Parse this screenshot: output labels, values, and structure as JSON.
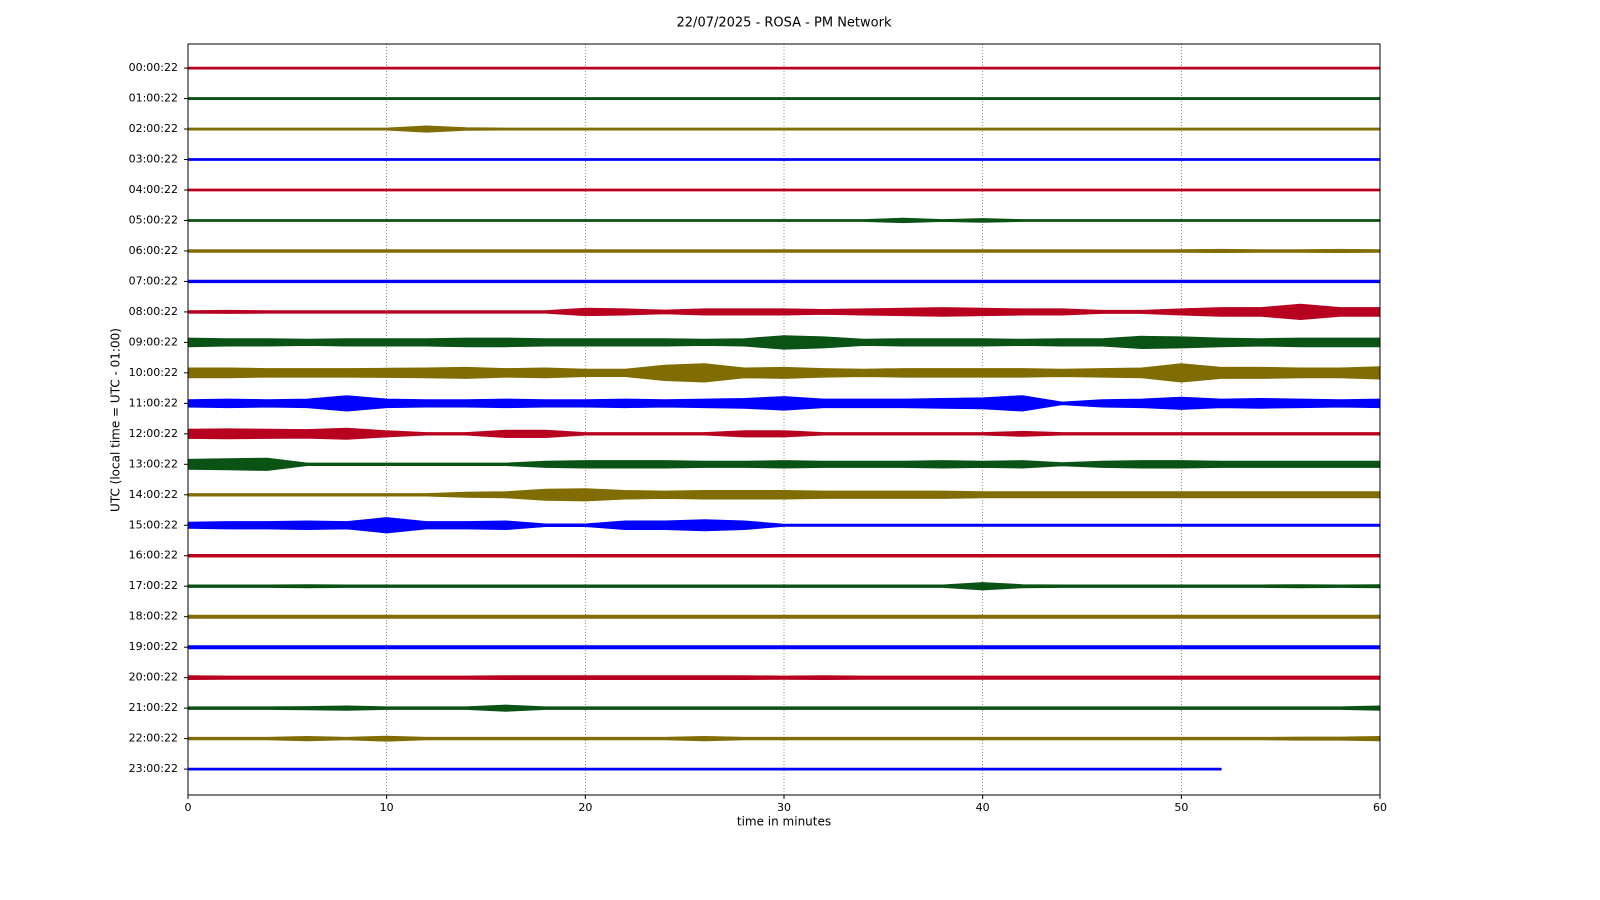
{
  "chart_data": {
    "type": "helicorder",
    "title": "22/07/2025 - ROSA - PM Network",
    "xlabel": "time in minutes",
    "ylabel": "UTC (local time = UTC - 01:00)",
    "xlim": [
      0,
      60
    ],
    "xticks": [
      0,
      10,
      20,
      30,
      40,
      50,
      60
    ],
    "grid": true,
    "ylim": [
      23.85,
      -0.79
    ],
    "yticks": [
      {
        "value": 0,
        "label": "00:00:22"
      },
      {
        "value": 1,
        "label": "01:00:22"
      },
      {
        "value": 2,
        "label": "02:00:22"
      },
      {
        "value": 3,
        "label": "03:00:22"
      },
      {
        "value": 4,
        "label": "04:00:22"
      },
      {
        "value": 5,
        "label": "05:00:22"
      },
      {
        "value": 6,
        "label": "06:00:22"
      },
      {
        "value": 7,
        "label": "07:00:22"
      },
      {
        "value": 8,
        "label": "08:00:22"
      },
      {
        "value": 9,
        "label": "09:00:22"
      },
      {
        "value": 10,
        "label": "10:00:22"
      },
      {
        "value": 11,
        "label": "11:00:22"
      },
      {
        "value": 12,
        "label": "12:00:22"
      },
      {
        "value": 13,
        "label": "13:00:22"
      },
      {
        "value": 14,
        "label": "14:00:22"
      },
      {
        "value": 15,
        "label": "15:00:22"
      },
      {
        "value": 16,
        "label": "16:00:22"
      },
      {
        "value": 17,
        "label": "17:00:22"
      },
      {
        "value": 18,
        "label": "18:00:22"
      },
      {
        "value": 19,
        "label": "19:00:22"
      },
      {
        "value": 20,
        "label": "20:00:22"
      },
      {
        "value": 21,
        "label": "21:00:22"
      },
      {
        "value": 22,
        "label": "22:00:22"
      },
      {
        "value": 23,
        "label": "23:00:22"
      }
    ],
    "x": [
      0,
      2,
      4,
      6,
      8,
      10,
      12,
      14,
      16,
      18,
      20,
      22,
      24,
      26,
      28,
      30,
      32,
      34,
      36,
      38,
      40,
      42,
      44,
      46,
      48,
      50,
      52,
      54,
      56,
      58,
      60
    ],
    "series": [
      {
        "color": "#b8001f",
        "values": [
          0.03,
          0.03,
          0.03,
          0.03,
          0.03,
          0.03,
          0.03,
          0.03,
          0.03,
          0.03,
          0.03,
          0.03,
          0.03,
          0.03,
          0.03,
          0.03,
          0.03,
          0.03,
          0.03,
          0.03,
          0.03,
          0.03,
          0.03,
          0.03,
          0.03,
          0.03,
          0.03,
          0.03,
          0.03,
          0.03,
          0.03
        ]
      },
      {
        "color": "#0b5215",
        "values": [
          0.03,
          0.03,
          0.03,
          0.03,
          0.03,
          0.03,
          0.03,
          0.03,
          0.03,
          0.03,
          0.03,
          0.03,
          0.03,
          0.03,
          0.03,
          0.03,
          0.03,
          0.03,
          0.03,
          0.03,
          0.03,
          0.03,
          0.03,
          0.03,
          0.03,
          0.03,
          0.03,
          0.03,
          0.03,
          0.03,
          0.03
        ]
      },
      {
        "color": "#806c00",
        "values": [
          0.03,
          0.03,
          0.03,
          0.03,
          0.03,
          0.03,
          0.1,
          0.04,
          0.03,
          0.03,
          0.03,
          0.03,
          0.03,
          0.03,
          0.03,
          0.03,
          0.03,
          0.03,
          0.03,
          0.03,
          0.03,
          0.03,
          0.03,
          0.03,
          0.03,
          0.03,
          0.03,
          0.03,
          0.03,
          0.03,
          0.03
        ]
      },
      {
        "color": "#0000ff",
        "values": [
          0.03,
          0.03,
          0.03,
          0.03,
          0.03,
          0.03,
          0.03,
          0.03,
          0.03,
          0.03,
          0.03,
          0.03,
          0.03,
          0.03,
          0.03,
          0.03,
          0.03,
          0.03,
          0.03,
          0.03,
          0.03,
          0.03,
          0.03,
          0.03,
          0.03,
          0.03,
          0.03,
          0.03,
          0.03,
          0.03,
          0.03
        ]
      },
      {
        "color": "#b8001f",
        "values": [
          0.03,
          0.03,
          0.03,
          0.03,
          0.03,
          0.03,
          0.03,
          0.03,
          0.03,
          0.03,
          0.03,
          0.03,
          0.03,
          0.03,
          0.03,
          0.03,
          0.03,
          0.03,
          0.03,
          0.03,
          0.03,
          0.03,
          0.03,
          0.03,
          0.03,
          0.03,
          0.03,
          0.03,
          0.03,
          0.03,
          0.03
        ]
      },
      {
        "color": "#0b5215",
        "values": [
          0.03,
          0.03,
          0.03,
          0.03,
          0.03,
          0.03,
          0.03,
          0.03,
          0.03,
          0.03,
          0.03,
          0.03,
          0.03,
          0.03,
          0.03,
          0.03,
          0.03,
          0.03,
          0.07,
          0.03,
          0.06,
          0.03,
          0.03,
          0.03,
          0.03,
          0.03,
          0.03,
          0.03,
          0.03,
          0.03,
          0.03
        ]
      },
      {
        "color": "#806c00",
        "values": [
          0.04,
          0.04,
          0.04,
          0.04,
          0.04,
          0.04,
          0.04,
          0.04,
          0.04,
          0.04,
          0.04,
          0.04,
          0.04,
          0.04,
          0.04,
          0.04,
          0.04,
          0.04,
          0.04,
          0.04,
          0.04,
          0.04,
          0.04,
          0.04,
          0.04,
          0.04,
          0.05,
          0.04,
          0.04,
          0.05,
          0.04
        ]
      },
      {
        "color": "#0000ff",
        "values": [
          0.04,
          0.04,
          0.04,
          0.04,
          0.04,
          0.04,
          0.04,
          0.04,
          0.04,
          0.04,
          0.04,
          0.04,
          0.04,
          0.04,
          0.04,
          0.04,
          0.04,
          0.04,
          0.04,
          0.04,
          0.04,
          0.04,
          0.04,
          0.04,
          0.04,
          0.04,
          0.04,
          0.04,
          0.04,
          0.04,
          0.04
        ]
      },
      {
        "color": "#b8001f",
        "values": [
          0.04,
          0.05,
          0.04,
          0.04,
          0.04,
          0.04,
          0.04,
          0.04,
          0.04,
          0.04,
          0.12,
          0.1,
          0.06,
          0.1,
          0.1,
          0.1,
          0.08,
          0.1,
          0.12,
          0.14,
          0.12,
          0.1,
          0.1,
          0.05,
          0.05,
          0.1,
          0.14,
          0.14,
          0.25,
          0.14,
          0.14
        ]
      },
      {
        "color": "#0b5215",
        "values": [
          0.14,
          0.12,
          0.12,
          0.1,
          0.12,
          0.12,
          0.12,
          0.14,
          0.14,
          0.12,
          0.12,
          0.12,
          0.12,
          0.1,
          0.12,
          0.22,
          0.18,
          0.1,
          0.12,
          0.12,
          0.12,
          0.1,
          0.12,
          0.12,
          0.2,
          0.18,
          0.14,
          0.12,
          0.14,
          0.14,
          0.14
        ]
      },
      {
        "color": "#806c00",
        "values": [
          0.16,
          0.16,
          0.14,
          0.14,
          0.14,
          0.15,
          0.16,
          0.18,
          0.14,
          0.16,
          0.12,
          0.12,
          0.25,
          0.3,
          0.16,
          0.18,
          0.14,
          0.12,
          0.14,
          0.14,
          0.14,
          0.14,
          0.12,
          0.14,
          0.16,
          0.3,
          0.18,
          0.18,
          0.16,
          0.16,
          0.2
        ]
      },
      {
        "color": "#0000ff",
        "values": [
          0.12,
          0.14,
          0.12,
          0.14,
          0.25,
          0.14,
          0.12,
          0.12,
          0.14,
          0.12,
          0.12,
          0.14,
          0.12,
          0.14,
          0.16,
          0.22,
          0.14,
          0.14,
          0.14,
          0.16,
          0.18,
          0.25,
          0.04,
          0.12,
          0.14,
          0.2,
          0.14,
          0.16,
          0.14,
          0.12,
          0.14
        ]
      },
      {
        "color": "#b8001f",
        "values": [
          0.15,
          0.16,
          0.15,
          0.14,
          0.18,
          0.1,
          0.04,
          0.04,
          0.12,
          0.12,
          0.04,
          0.04,
          0.04,
          0.04,
          0.1,
          0.1,
          0.04,
          0.04,
          0.04,
          0.04,
          0.04,
          0.08,
          0.04,
          0.04,
          0.04,
          0.04,
          0.04,
          0.04,
          0.04,
          0.04,
          0.04
        ]
      },
      {
        "color": "#0b5215",
        "values": [
          0.16,
          0.18,
          0.2,
          0.04,
          0.04,
          0.04,
          0.04,
          0.04,
          0.04,
          0.1,
          0.12,
          0.12,
          0.12,
          0.1,
          0.1,
          0.12,
          0.1,
          0.1,
          0.1,
          0.12,
          0.1,
          0.12,
          0.05,
          0.1,
          0.12,
          0.12,
          0.1,
          0.1,
          0.1,
          0.1,
          0.1
        ]
      },
      {
        "color": "#806c00",
        "values": [
          0.04,
          0.04,
          0.04,
          0.04,
          0.04,
          0.04,
          0.04,
          0.08,
          0.1,
          0.18,
          0.2,
          0.14,
          0.12,
          0.14,
          0.14,
          0.14,
          0.12,
          0.12,
          0.12,
          0.12,
          0.1,
          0.1,
          0.1,
          0.1,
          0.1,
          0.1,
          0.1,
          0.1,
          0.1,
          0.1,
          0.1
        ]
      },
      {
        "color": "#0000ff",
        "values": [
          0.1,
          0.12,
          0.12,
          0.14,
          0.12,
          0.25,
          0.12,
          0.12,
          0.14,
          0.04,
          0.04,
          0.14,
          0.14,
          0.18,
          0.14,
          0.03,
          0.03,
          0.03,
          0.03,
          0.03,
          0.03,
          0.03,
          0.03,
          0.03,
          0.03,
          0.03,
          0.03,
          0.03,
          0.03,
          0.03,
          0.03
        ]
      },
      {
        "color": "#b8001f",
        "values": [
          0.04,
          0.04,
          0.04,
          0.04,
          0.04,
          0.04,
          0.04,
          0.04,
          0.04,
          0.04,
          0.04,
          0.04,
          0.04,
          0.04,
          0.04,
          0.04,
          0.04,
          0.04,
          0.04,
          0.04,
          0.04,
          0.04,
          0.04,
          0.04,
          0.04,
          0.04,
          0.04,
          0.04,
          0.04,
          0.04,
          0.04
        ]
      },
      {
        "color": "#0b5215",
        "values": [
          0.04,
          0.04,
          0.04,
          0.05,
          0.04,
          0.04,
          0.04,
          0.04,
          0.04,
          0.04,
          0.04,
          0.04,
          0.04,
          0.04,
          0.04,
          0.04,
          0.04,
          0.04,
          0.04,
          0.04,
          0.12,
          0.05,
          0.04,
          0.04,
          0.04,
          0.04,
          0.04,
          0.04,
          0.05,
          0.04,
          0.05
        ]
      },
      {
        "color": "#806c00",
        "values": [
          0.05,
          0.05,
          0.05,
          0.05,
          0.05,
          0.05,
          0.05,
          0.05,
          0.05,
          0.05,
          0.05,
          0.05,
          0.05,
          0.05,
          0.05,
          0.05,
          0.05,
          0.05,
          0.05,
          0.05,
          0.05,
          0.05,
          0.05,
          0.05,
          0.05,
          0.05,
          0.05,
          0.05,
          0.05,
          0.05,
          0.05
        ]
      },
      {
        "color": "#0000ff",
        "values": [
          0.05,
          0.05,
          0.05,
          0.05,
          0.05,
          0.05,
          0.05,
          0.05,
          0.05,
          0.05,
          0.05,
          0.05,
          0.05,
          0.05,
          0.05,
          0.05,
          0.05,
          0.05,
          0.05,
          0.05,
          0.05,
          0.05,
          0.05,
          0.05,
          0.05,
          0.05,
          0.05,
          0.05,
          0.05,
          0.05,
          0.05
        ]
      },
      {
        "color": "#b8001f",
        "values": [
          0.06,
          0.05,
          0.05,
          0.05,
          0.05,
          0.05,
          0.05,
          0.05,
          0.06,
          0.06,
          0.06,
          0.06,
          0.06,
          0.06,
          0.06,
          0.05,
          0.06,
          0.05,
          0.05,
          0.05,
          0.05,
          0.05,
          0.05,
          0.05,
          0.05,
          0.05,
          0.05,
          0.05,
          0.05,
          0.05,
          0.05
        ]
      },
      {
        "color": "#0b5215",
        "values": [
          0.04,
          0.04,
          0.04,
          0.05,
          0.07,
          0.04,
          0.04,
          0.04,
          0.1,
          0.04,
          0.04,
          0.04,
          0.04,
          0.04,
          0.04,
          0.04,
          0.04,
          0.04,
          0.04,
          0.04,
          0.04,
          0.04,
          0.04,
          0.04,
          0.04,
          0.04,
          0.04,
          0.04,
          0.04,
          0.04,
          0.07
        ]
      },
      {
        "color": "#806c00",
        "values": [
          0.04,
          0.04,
          0.04,
          0.07,
          0.04,
          0.08,
          0.04,
          0.04,
          0.04,
          0.04,
          0.04,
          0.04,
          0.04,
          0.07,
          0.04,
          0.04,
          0.04,
          0.04,
          0.04,
          0.04,
          0.04,
          0.04,
          0.04,
          0.04,
          0.04,
          0.04,
          0.04,
          0.04,
          0.05,
          0.05,
          0.07
        ]
      },
      {
        "color": "#0000ff",
        "values": [
          0.03,
          0.03,
          0.03,
          0.03,
          0.03,
          0.03,
          0.03,
          0.03,
          0.03,
          0.03,
          0.03,
          0.03,
          0.03,
          0.03,
          0.03,
          0.03,
          0.03,
          0.03,
          0.03,
          0.03,
          0.03,
          0.03,
          0.03,
          0.03,
          0.03,
          0.03,
          0.03,
          null,
          null,
          null,
          null
        ]
      }
    ]
  }
}
